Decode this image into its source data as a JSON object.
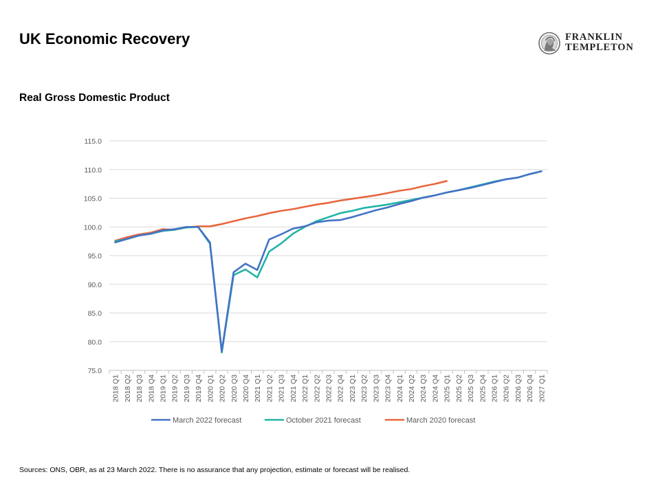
{
  "page": {
    "title": "UK Economic Recovery",
    "logo": {
      "line1": "FRANKLIN",
      "line2": "TEMPLETON"
    },
    "footer": "Sources: ONS, OBR, as at 23 March 2022. There is no assurance that any projection, estimate or forecast will be realised."
  },
  "chart_data": {
    "type": "line",
    "title": "Real Gross Domestic Product",
    "xlabel": "",
    "ylabel": "",
    "ylim": [
      75.0,
      115.0
    ],
    "yticks": [
      "75.0",
      "80.0",
      "85.0",
      "90.0",
      "95.0",
      "100.0",
      "105.0",
      "110.0",
      "115.0"
    ],
    "grid": "horizontal",
    "legend_position": "bottom",
    "categories": [
      "2018 Q1",
      "2018 Q2",
      "2018 Q3",
      "2018 Q4",
      "2019 Q1",
      "2019 Q2",
      "2019 Q3",
      "2019 Q4",
      "2020 Q1",
      "2020 Q2",
      "2020 Q3",
      "2020 Q4",
      "2021 Q1",
      "2021 Q2",
      "2021 Q3",
      "2021 Q4",
      "2022 Q1",
      "2022 Q2",
      "2022 Q3",
      "2022 Q4",
      "2023 Q1",
      "2023 Q2",
      "2023 Q3",
      "2023 Q4",
      "2024 Q1",
      "2024 Q2",
      "2024 Q3",
      "2024 Q4",
      "2025 Q1",
      "2025 Q2",
      "2025 Q3",
      "2025 Q4",
      "2026 Q1",
      "2026 Q2",
      "2026 Q3",
      "2026 Q4",
      "2027 Q1"
    ],
    "series": [
      {
        "name": "March 2022 forecast",
        "color": "#4472C4",
        "values": [
          97.3,
          97.9,
          98.5,
          98.8,
          99.4,
          99.6,
          100.0,
          100.0,
          97.3,
          78.3,
          92.1,
          93.6,
          92.5,
          97.8,
          98.7,
          99.7,
          100.1,
          100.8,
          101.1,
          101.2,
          101.7,
          102.3,
          102.9,
          103.4,
          104.0,
          104.5,
          105.1,
          105.5,
          106.0,
          106.4,
          106.8,
          107.3,
          107.8,
          108.3,
          108.6,
          109.2,
          109.7
        ]
      },
      {
        "name": "October 2021 forecast",
        "color": "#21B4A6",
        "values": [
          97.5,
          97.9,
          98.5,
          98.8,
          99.3,
          99.5,
          99.9,
          100.0,
          97.1,
          78.1,
          91.6,
          92.6,
          91.2,
          95.7,
          97.1,
          98.8,
          100.0,
          101.0,
          101.7,
          102.4,
          102.8,
          103.3,
          103.6,
          103.9,
          104.3,
          104.7,
          105.1,
          105.5,
          106.0,
          106.4,
          106.9,
          107.4,
          107.9,
          108.3,
          108.6,
          109.2,
          109.7
        ]
      },
      {
        "name": "March 2020 forecast",
        "color": "#E8663D",
        "values": [
          97.6,
          98.2,
          98.7,
          99.0,
          99.6,
          99.5,
          99.9,
          100.1,
          100.1,
          100.5,
          101.0,
          101.5,
          101.9,
          102.4,
          102.8,
          103.1,
          103.5,
          103.9,
          104.2,
          104.6,
          104.9,
          105.2,
          105.5,
          105.9,
          106.3,
          106.6,
          107.1,
          107.5,
          108.0,
          null,
          null,
          null,
          null,
          null,
          null,
          null,
          null
        ]
      }
    ]
  }
}
